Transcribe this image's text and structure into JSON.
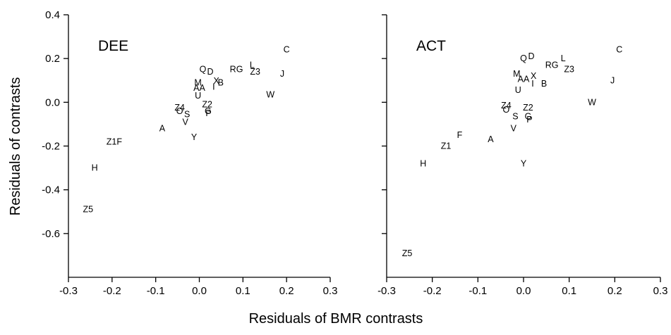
{
  "chart_data": {
    "type": "scatter",
    "ylabel": "Residuals of contrasts",
    "xlabel": "Residuals of BMR contrasts",
    "panels": [
      {
        "title": "DEE",
        "xlim": [
          -0.3,
          0.3
        ],
        "ylim": [
          -0.8,
          0.4
        ],
        "xticks": [
          -0.3,
          -0.2,
          -0.1,
          0.0,
          0.1,
          0.2,
          0.3
        ],
        "xtick_labels": [
          "-0.3",
          "-0.2",
          "-0.1",
          "0.0",
          "0.1",
          "0.2",
          "0.3"
        ],
        "yticks": [
          0.4,
          0.2,
          0.0,
          -0.2,
          -0.4,
          -0.6
        ],
        "ytick_labels": [
          "0.4",
          "0.2",
          "0.0",
          "-0.2",
          "-0.4",
          "-0.6"
        ],
        "points": [
          {
            "label": "C",
            "x": 0.2,
            "y": 0.24
          },
          {
            "label": "L",
            "x": 0.121,
            "y": 0.17
          },
          {
            "label": "Z3",
            "x": 0.128,
            "y": 0.14
          },
          {
            "label": "J",
            "x": 0.19,
            "y": 0.13
          },
          {
            "label": "RG",
            "x": 0.085,
            "y": 0.15
          },
          {
            "label": "W",
            "x": 0.163,
            "y": 0.035
          },
          {
            "label": "B",
            "x": 0.049,
            "y": 0.09
          },
          {
            "label": "Q",
            "x": 0.008,
            "y": 0.15
          },
          {
            "label": "D",
            "x": 0.025,
            "y": 0.14
          },
          {
            "label": "X",
            "x": 0.039,
            "y": 0.098
          },
          {
            "label": "I",
            "x": 0.033,
            "y": 0.07
          },
          {
            "label": "M",
            "x": -0.003,
            "y": 0.09
          },
          {
            "label": "AA",
            "x": 0.0,
            "y": 0.065
          },
          {
            "label": "U",
            "x": -0.003,
            "y": 0.03
          },
          {
            "label": "Z2",
            "x": 0.018,
            "y": -0.01
          },
          {
            "label": "P",
            "x": 0.021,
            "y": -0.05
          },
          {
            "label": "G",
            "x": 0.02,
            "y": -0.04
          },
          {
            "label": "Z4",
            "x": -0.045,
            "y": -0.025
          },
          {
            "label": "O",
            "x": -0.045,
            "y": -0.04
          },
          {
            "label": "S",
            "x": -0.028,
            "y": -0.055
          },
          {
            "label": "V",
            "x": -0.032,
            "y": -0.09
          },
          {
            "label": "A",
            "x": -0.085,
            "y": -0.12
          },
          {
            "label": "Y",
            "x": -0.012,
            "y": -0.16
          },
          {
            "label": "Z1F",
            "x": -0.195,
            "y": -0.18
          },
          {
            "label": "H",
            "x": -0.24,
            "y": -0.3
          },
          {
            "label": "Z5",
            "x": -0.255,
            "y": -0.49
          }
        ]
      },
      {
        "title": "ACT",
        "xlim": [
          -0.3,
          0.3
        ],
        "ylim": [
          -0.8,
          0.4
        ],
        "xticks": [
          -0.3,
          -0.2,
          -0.1,
          0.0,
          0.1,
          0.2,
          0.3
        ],
        "xtick_labels": [
          "-0.3",
          "-0.2",
          "-0.1",
          "0.0",
          "0.1",
          "0.2",
          "0.3"
        ],
        "yticks": [
          0.4,
          0.2,
          0.0,
          -0.2,
          -0.4,
          -0.6
        ],
        "ytick_labels": [
          "",
          "",
          "",
          "",
          "",
          ""
        ],
        "points": [
          {
            "label": "C",
            "x": 0.21,
            "y": 0.24
          },
          {
            "label": "L",
            "x": 0.087,
            "y": 0.2
          },
          {
            "label": "RG",
            "x": 0.062,
            "y": 0.17
          },
          {
            "label": "Z3",
            "x": 0.1,
            "y": 0.15
          },
          {
            "label": "J",
            "x": 0.195,
            "y": 0.1
          },
          {
            "label": "W",
            "x": 0.15,
            "y": 0.0
          },
          {
            "label": "Q",
            "x": 0.0,
            "y": 0.2
          },
          {
            "label": "D",
            "x": 0.017,
            "y": 0.21
          },
          {
            "label": "M",
            "x": -0.015,
            "y": 0.13
          },
          {
            "label": "X",
            "x": 0.022,
            "y": 0.12
          },
          {
            "label": "AA",
            "x": 0.0,
            "y": 0.105
          },
          {
            "label": "I",
            "x": 0.02,
            "y": 0.085
          },
          {
            "label": "B",
            "x": 0.045,
            "y": 0.085
          },
          {
            "label": "U",
            "x": -0.012,
            "y": 0.055
          },
          {
            "label": "Z4",
            "x": -0.038,
            "y": -0.015
          },
          {
            "label": "O",
            "x": -0.038,
            "y": -0.035
          },
          {
            "label": "Z2",
            "x": 0.01,
            "y": -0.025
          },
          {
            "label": "S",
            "x": -0.018,
            "y": -0.065
          },
          {
            "label": "P",
            "x": 0.013,
            "y": -0.08
          },
          {
            "label": "G",
            "x": 0.01,
            "y": -0.065
          },
          {
            "label": "V",
            "x": -0.022,
            "y": -0.12
          },
          {
            "label": "F",
            "x": -0.14,
            "y": -0.15
          },
          {
            "label": "A",
            "x": -0.072,
            "y": -0.17
          },
          {
            "label": "Z1",
            "x": -0.17,
            "y": -0.2
          },
          {
            "label": "Y",
            "x": 0.0,
            "y": -0.28
          },
          {
            "label": "H",
            "x": -0.22,
            "y": -0.28
          },
          {
            "label": "Z5",
            "x": -0.255,
            "y": -0.69
          }
        ]
      }
    ]
  }
}
